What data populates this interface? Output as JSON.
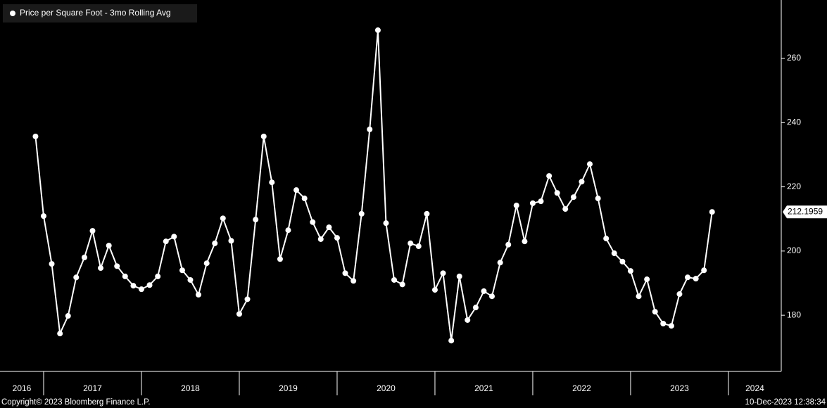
{
  "chart_data": {
    "type": "line",
    "legend": "Price per Square Foot - 3mo Rolling Avg",
    "copyright": "Copyright© 2023 Bloomberg Finance L.P.",
    "timestamp": "10-Dec-2023 12:38:34",
    "color": "#ffffff",
    "x": [
      2016.917,
      2017.0,
      2017.083,
      2017.167,
      2017.25,
      2017.333,
      2017.417,
      2017.5,
      2017.583,
      2017.667,
      2017.75,
      2017.833,
      2017.917,
      2018.0,
      2018.083,
      2018.167,
      2018.25,
      2018.333,
      2018.417,
      2018.5,
      2018.583,
      2018.667,
      2018.75,
      2018.833,
      2018.917,
      2019.0,
      2019.083,
      2019.167,
      2019.25,
      2019.333,
      2019.417,
      2019.5,
      2019.583,
      2019.667,
      2019.75,
      2019.833,
      2019.917,
      2020.0,
      2020.083,
      2020.167,
      2020.25,
      2020.333,
      2020.417,
      2020.5,
      2020.583,
      2020.667,
      2020.75,
      2020.833,
      2020.917,
      2021.0,
      2021.083,
      2021.167,
      2021.25,
      2021.333,
      2021.417,
      2021.5,
      2021.583,
      2021.667,
      2021.75,
      2021.833,
      2021.917,
      2022.0,
      2022.083,
      2022.167,
      2022.25,
      2022.333,
      2022.417,
      2022.5,
      2022.583,
      2022.667,
      2022.75,
      2022.833,
      2022.917,
      2023.0,
      2023.083,
      2023.167,
      2023.25,
      2023.333,
      2023.417,
      2023.5,
      2023.583,
      2023.667,
      2023.75,
      2023.833
    ],
    "values": [
      235.7,
      210.9,
      196.0,
      174.3,
      179.8,
      191.8,
      198.0,
      206.3,
      194.7,
      201.7,
      195.3,
      192.1,
      189.2,
      188.1,
      189.4,
      192.1,
      203.0,
      204.5,
      194.0,
      191.0,
      186.4,
      196.2,
      202.4,
      210.2,
      203.2,
      180.4,
      185.0,
      209.8,
      235.7,
      221.4,
      197.5,
      206.5,
      219.0,
      216.4,
      209.0,
      203.7,
      207.4,
      204.1,
      193.1,
      190.7,
      211.6,
      237.9,
      268.8,
      208.7,
      191.0,
      189.6,
      202.4,
      201.5,
      211.6,
      187.9,
      193.1,
      172.1,
      192.1,
      178.5,
      182.4,
      187.5,
      185.9,
      196.4,
      202.0,
      214.2,
      203.0,
      214.9,
      215.5,
      223.4,
      218.1,
      213.1,
      216.8,
      221.6,
      227.1,
      216.4,
      203.9,
      199.3,
      196.7,
      193.8,
      185.9,
      191.2,
      181.1,
      177.4,
      176.7,
      186.6,
      191.8,
      191.4,
      194.0,
      212.1959
    ],
    "xlim": [
      2016.554,
      2024.54
    ],
    "xticks": [
      2016,
      2017,
      2018,
      2019,
      2020,
      2021,
      2022,
      2023,
      2024
    ],
    "ylim": [
      162.5,
      278.2
    ],
    "yticks": [
      180,
      200,
      220,
      240,
      260
    ]
  }
}
